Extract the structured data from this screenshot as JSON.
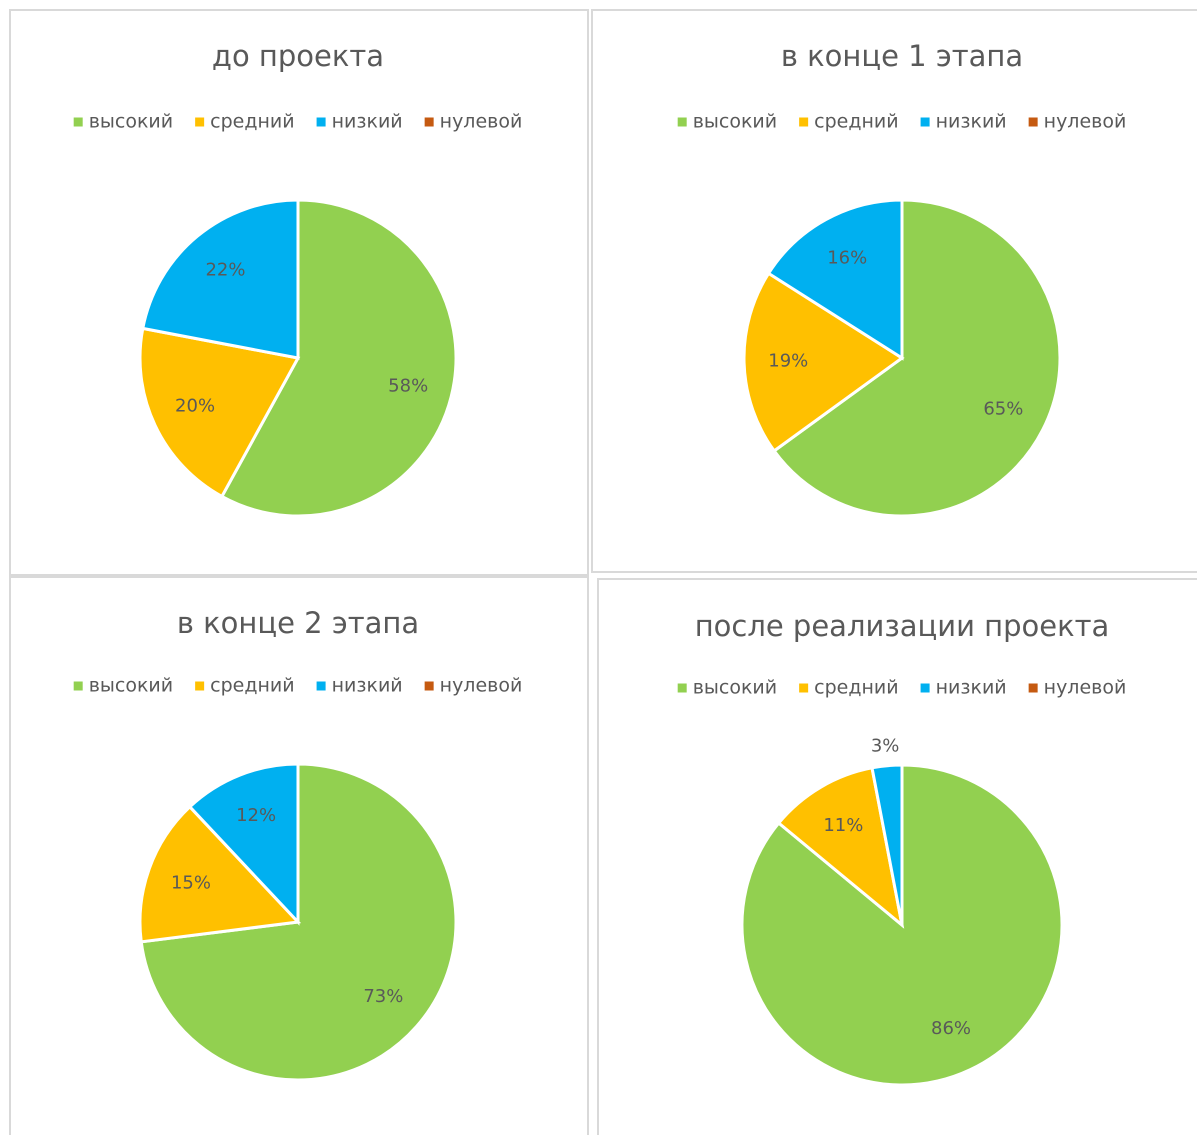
{
  "chart_data": [
    {
      "type": "pie",
      "title": "до проекта",
      "categories": [
        "высокий",
        "средний",
        "низкий",
        "нулевой"
      ],
      "colors": [
        "#92d050",
        "#ffc000",
        "#00b0f0",
        "#c55a11"
      ],
      "values": [
        58,
        20,
        22,
        0
      ],
      "value_labels": [
        "58%",
        "20%",
        "22%",
        null
      ]
    },
    {
      "type": "pie",
      "title": "в конце 1 этапа",
      "categories": [
        "высокий",
        "средний",
        "низкий",
        "нулевой"
      ],
      "colors": [
        "#92d050",
        "#ffc000",
        "#00b0f0",
        "#c55a11"
      ],
      "values": [
        65,
        19,
        16,
        0
      ],
      "value_labels": [
        "65%",
        "19%",
        "16%",
        null
      ]
    },
    {
      "type": "pie",
      "title": "в конце 2 этапа",
      "categories": [
        "высокий",
        "средний",
        "низкий",
        "нулевой"
      ],
      "colors": [
        "#92d050",
        "#ffc000",
        "#00b0f0",
        "#c55a11"
      ],
      "values": [
        73,
        15,
        12,
        0
      ],
      "value_labels": [
        "73%",
        "15%",
        "12%",
        null
      ]
    },
    {
      "type": "pie",
      "title": "после реализации проекта",
      "categories": [
        "высокий",
        "средний",
        "низкий",
        "нулевой"
      ],
      "colors": [
        "#92d050",
        "#ffc000",
        "#00b0f0",
        "#c55a11"
      ],
      "values": [
        86,
        11,
        3,
        0
      ],
      "value_labels": [
        "86%",
        "11%",
        "3%",
        null
      ]
    }
  ]
}
